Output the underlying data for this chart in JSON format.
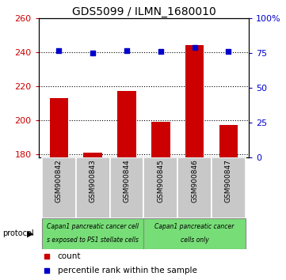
{
  "title": "GDS5099 / ILMN_1680010",
  "samples": [
    "GSM900842",
    "GSM900843",
    "GSM900844",
    "GSM900845",
    "GSM900846",
    "GSM900847"
  ],
  "count_values": [
    213,
    181,
    217,
    199,
    244,
    197
  ],
  "percentile_values": [
    77,
    75,
    77,
    76,
    79,
    76
  ],
  "ylim_left": [
    178,
    260
  ],
  "ylim_right": [
    0,
    100
  ],
  "yticks_left": [
    180,
    200,
    220,
    240,
    260
  ],
  "yticks_right": [
    0,
    25,
    50,
    75,
    100
  ],
  "bar_color": "#CC0000",
  "dot_color": "#0000CC",
  "group1_label_line1": "Capan1 pancreatic cancer cell",
  "group1_label_line2": "s exposed to PS1 stellate cells",
  "group2_label_line1": "Capan1 pancreatic cancer",
  "group2_label_line2": "cells only",
  "group1_color": "#77DD77",
  "group2_color": "#77DD77",
  "group1_samples": [
    0,
    1,
    2
  ],
  "group2_samples": [
    3,
    4,
    5
  ],
  "sample_box_color": "#C8C8C8",
  "legend_count": "count",
  "legend_percentile": "percentile rank within the sample",
  "protocol_label": "protocol",
  "background_color": "#FFFFFF",
  "title_fontsize": 10,
  "sample_label_fontsize": 6.5
}
